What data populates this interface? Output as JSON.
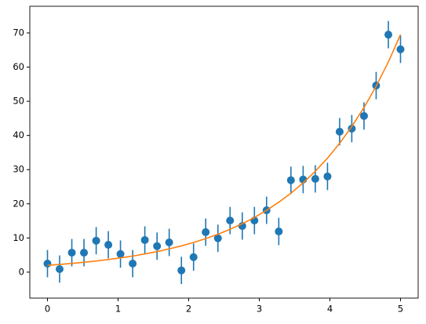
{
  "chart_data": {
    "type": "scatter",
    "x": [
      0,
      0.172,
      0.345,
      0.517,
      0.69,
      0.862,
      1.034,
      1.207,
      1.379,
      1.552,
      1.724,
      1.897,
      2.069,
      2.241,
      2.414,
      2.586,
      2.759,
      2.931,
      3.103,
      3.276,
      3.448,
      3.621,
      3.793,
      3.966,
      4.138,
      4.31,
      4.483,
      4.655,
      4.828,
      5
    ],
    "values": [
      2.5,
      0.9,
      5.7,
      5.7,
      9.2,
      8.0,
      5.3,
      2.5,
      9.4,
      7.6,
      8.7,
      0.5,
      4.4,
      11.7,
      9.9,
      15.1,
      13.5,
      15.1,
      18.1,
      11.9,
      26.9,
      27.1,
      27.3,
      28.0,
      41.1,
      42.0,
      45.7,
      54.6,
      69.5,
      65.2
    ],
    "errors": [
      4,
      4,
      4,
      4,
      4,
      4,
      4,
      4,
      4,
      4,
      4,
      4,
      4,
      4,
      4,
      4,
      4,
      4,
      4,
      4,
      4,
      4,
      4,
      4,
      4,
      4,
      4,
      4,
      4,
      4
    ],
    "color": "#1f77b4",
    "fit": {
      "values": [
        2.0,
        2.26,
        2.55,
        2.89,
        3.26,
        3.69,
        4.17,
        4.71,
        5.32,
        6.02,
        6.8,
        7.68,
        8.68,
        9.81,
        11.09,
        12.54,
        14.17,
        16.01,
        18.09,
        20.45,
        23.11,
        26.12,
        29.52,
        33.36,
        37.7,
        42.61,
        48.16,
        54.42,
        61.51,
        69.51
      ],
      "color": "#ff7f0e"
    },
    "xlim": [
      -0.25,
      5.25
    ],
    "ylim": [
      -7.6,
      77.8
    ],
    "xticks": [
      0,
      1,
      2,
      3,
      4,
      5
    ],
    "yticks": [
      0,
      10,
      20,
      30,
      40,
      50,
      60,
      70
    ]
  }
}
